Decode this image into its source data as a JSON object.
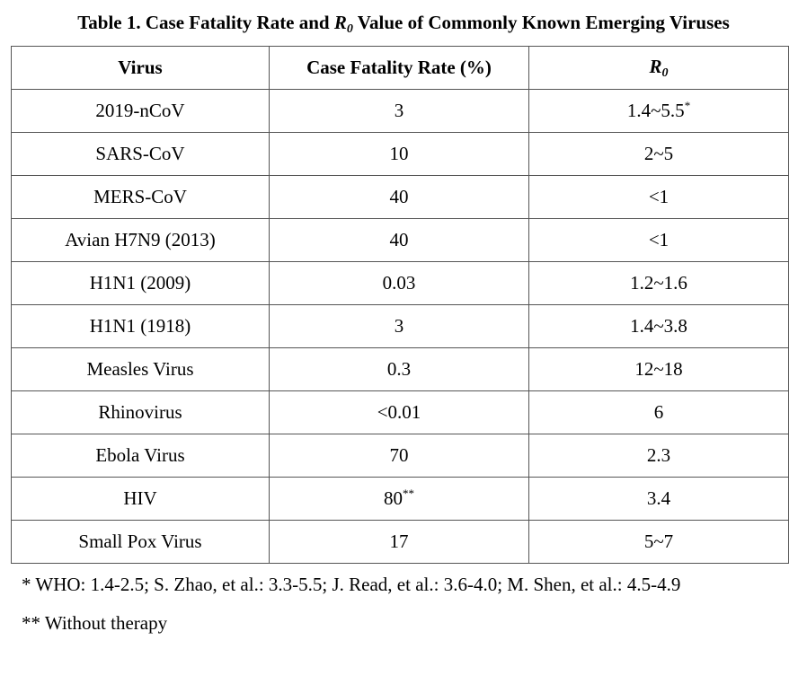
{
  "title": {
    "prefix": "Table 1. Case Fatality Rate and ",
    "r_symbol": "R",
    "r_subscript": "0",
    "suffix": " Value of Commonly Known Emerging Viruses"
  },
  "table": {
    "headers": {
      "virus": "Virus",
      "cfr": "Case Fatality Rate (%)",
      "r_symbol": "R",
      "r_subscript": "0"
    },
    "rows": [
      {
        "virus": "2019-nCoV",
        "cfr": "3",
        "cfr_mark": "",
        "r0": "1.4~5.5",
        "r0_mark": "*"
      },
      {
        "virus": "SARS-CoV",
        "cfr": "10",
        "cfr_mark": "",
        "r0": "2~5",
        "r0_mark": ""
      },
      {
        "virus": "MERS-CoV",
        "cfr": "40",
        "cfr_mark": "",
        "r0": "<1",
        "r0_mark": ""
      },
      {
        "virus": "Avian H7N9 (2013)",
        "cfr": "40",
        "cfr_mark": "",
        "r0": "<1",
        "r0_mark": ""
      },
      {
        "virus": "H1N1 (2009)",
        "cfr": "0.03",
        "cfr_mark": "",
        "r0": "1.2~1.6",
        "r0_mark": ""
      },
      {
        "virus": "H1N1 (1918)",
        "cfr": "3",
        "cfr_mark": "",
        "r0": "1.4~3.8",
        "r0_mark": ""
      },
      {
        "virus": "Measles Virus",
        "cfr": "0.3",
        "cfr_mark": "",
        "r0": "12~18",
        "r0_mark": ""
      },
      {
        "virus": "Rhinovirus",
        "cfr": "<0.01",
        "cfr_mark": "",
        "r0": "6",
        "r0_mark": ""
      },
      {
        "virus": "Ebola Virus",
        "cfr": "70",
        "cfr_mark": "",
        "r0": "2.3",
        "r0_mark": ""
      },
      {
        "virus": "HIV",
        "cfr": "80",
        "cfr_mark": "**",
        "r0": "3.4",
        "r0_mark": ""
      },
      {
        "virus": "Small Pox Virus",
        "cfr": "17",
        "cfr_mark": "",
        "r0": "5~7",
        "r0_mark": ""
      }
    ]
  },
  "footnotes": [
    "* WHO: 1.4-2.5; S. Zhao, et al.: 3.3-5.5; J. Read, et al.: 3.6-4.0; M. Shen, et al.: 4.5-4.9",
    "** Without therapy"
  ]
}
